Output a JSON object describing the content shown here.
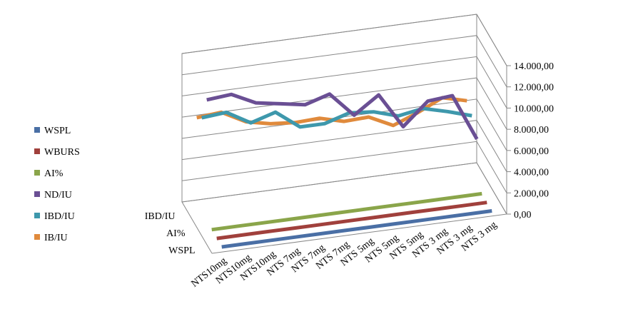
{
  "chart_data": {
    "type": "line3d",
    "categories": [
      "NTS10mg",
      "NTS10mg",
      "NTS10mg",
      "NTS 7mg",
      "NTS 7mg",
      "NTS 7mg",
      "NTS 5mg",
      "NTS 5mg",
      "NTS 5mg",
      "NTS 3 mg",
      "NTS 3 mg",
      "NTS 3 mg"
    ],
    "series": [
      {
        "name": "WSPL",
        "color": "#4a6fa5",
        "values": [
          50,
          50,
          50,
          50,
          50,
          50,
          50,
          50,
          50,
          50,
          50,
          50
        ]
      },
      {
        "name": "WBURS",
        "color": "#a0403c",
        "values": [
          40,
          40,
          40,
          40,
          40,
          40,
          40,
          40,
          40,
          40,
          40,
          40
        ]
      },
      {
        "name": "AI%",
        "color": "#8aa54a",
        "values": [
          60,
          60,
          60,
          60,
          60,
          60,
          60,
          60,
          60,
          60,
          60,
          60
        ]
      },
      {
        "name": "ND/IU",
        "color": "#6a4f94",
        "values": [
          11500,
          11700,
          10600,
          10200,
          9800,
          10500,
          8200,
          9800,
          6500,
          8600,
          8800,
          4400
        ]
      },
      {
        "name": "IBD/IU",
        "color": "#3e98ac",
        "values": [
          9000,
          9200,
          7900,
          8600,
          6900,
          6900,
          7600,
          7400,
          6700,
          7100,
          6500,
          5800
        ]
      },
      {
        "name": "IB/IU",
        "color": "#e08a3c",
        "values": [
          8200,
          8400,
          7200,
          6700,
          6500,
          6600,
          6000,
          6100,
          5000,
          5900,
          7000,
          6400
        ]
      }
    ],
    "ylim": [
      0,
      14000
    ],
    "yticks": [
      {
        "value": 0,
        "label": "0,00"
      },
      {
        "value": 2000,
        "label": "2.000,00"
      },
      {
        "value": 4000,
        "label": "4.000,00"
      },
      {
        "value": 6000,
        "label": "6.000,00"
      },
      {
        "value": 8000,
        "label": "8.000,00"
      },
      {
        "value": 10000,
        "label": "10.000,00"
      },
      {
        "value": 12000,
        "label": "12.000,00"
      },
      {
        "value": 14000,
        "label": "14.000,00"
      }
    ],
    "grid": true,
    "legend": "left"
  }
}
